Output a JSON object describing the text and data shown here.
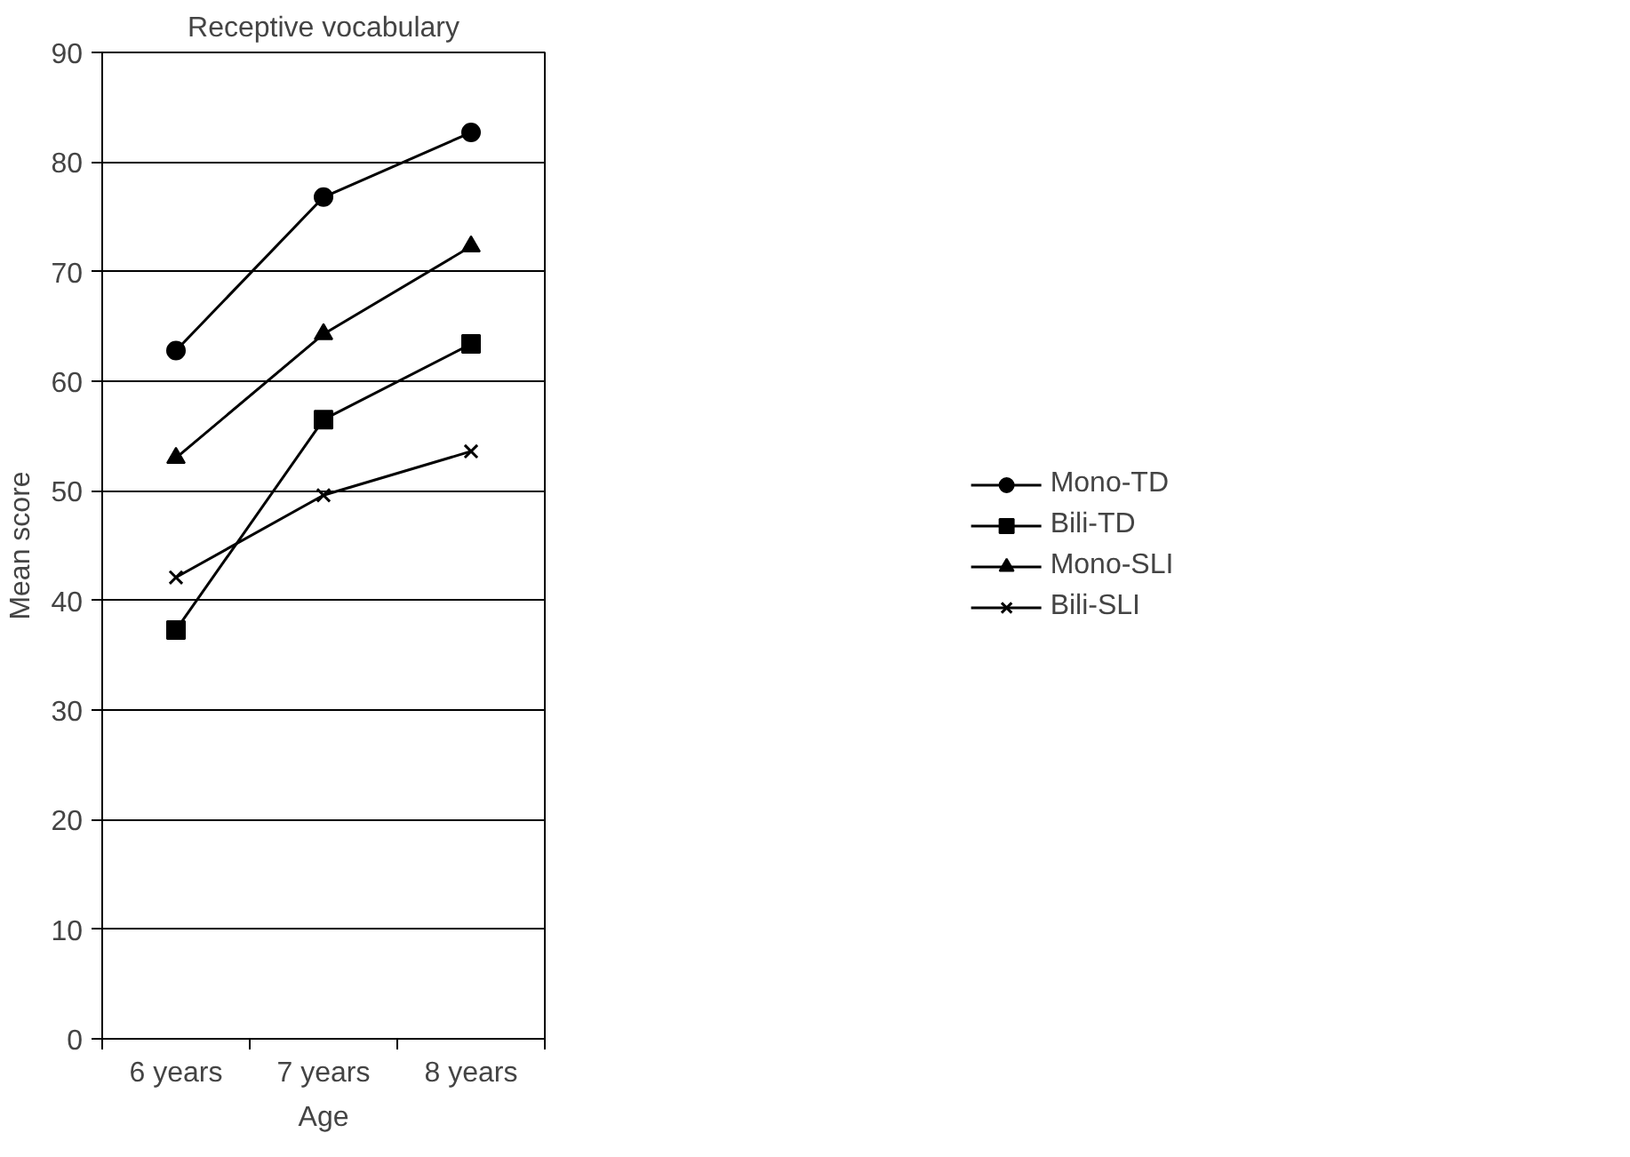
{
  "chart_data": {
    "type": "line",
    "title": "Receptive vocabulary",
    "xlabel": "Age",
    "ylabel": "Mean score",
    "categories": [
      "6 years",
      "7 years",
      "8 years"
    ],
    "ylim": [
      0,
      90
    ],
    "yticks": [
      0,
      10,
      20,
      30,
      40,
      50,
      60,
      70,
      80,
      90
    ],
    "grid": "y",
    "legend": "right",
    "line_style": "solid",
    "series": [
      {
        "name": "Mono-TD",
        "color": "#000000",
        "marker": "circle",
        "values": [
          62.8,
          76.8,
          82.7
        ]
      },
      {
        "name": "Bili-TD",
        "color": "#000000",
        "marker": "square",
        "values": [
          37.3,
          56.5,
          63.4
        ]
      },
      {
        "name": "Mono-SLI",
        "color": "#000000",
        "marker": "triangle",
        "values": [
          53.0,
          64.3,
          72.3
        ]
      },
      {
        "name": "Bili-SLI",
        "color": "#000000",
        "marker": "cross",
        "values": [
          42.1,
          49.6,
          53.6
        ]
      }
    ]
  }
}
